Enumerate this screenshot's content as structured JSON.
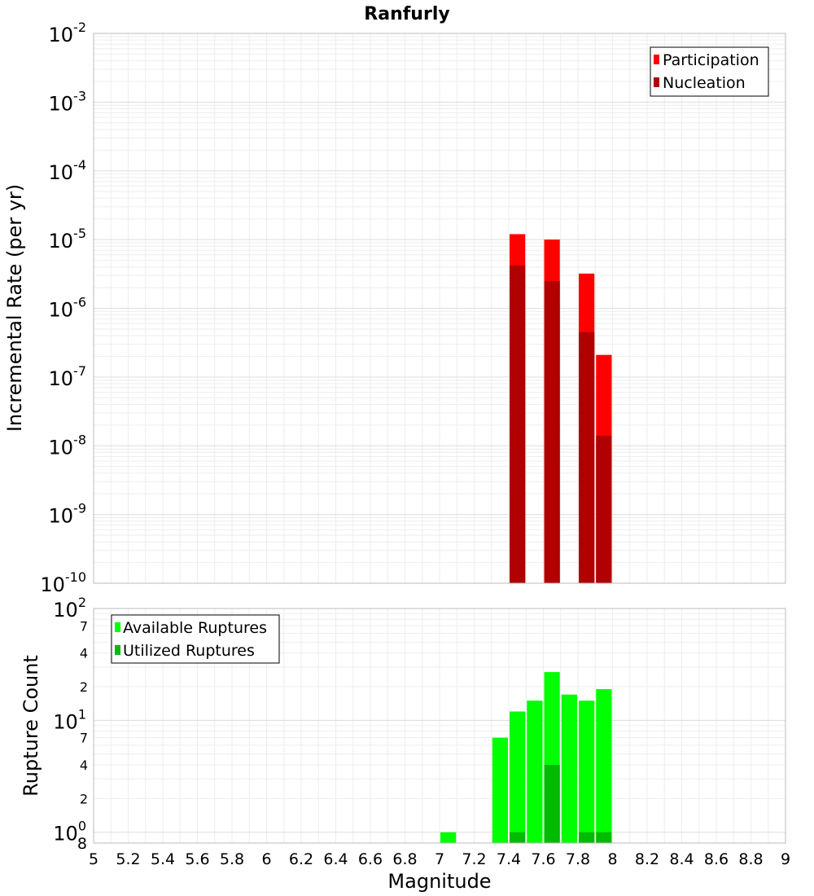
{
  "chart_data": [
    {
      "type": "bar",
      "title": "Ranfurly",
      "xlabel": "Magnitude",
      "ylabel": "Incremental Rate (per yr)",
      "yscale": "log",
      "xlim": [
        5,
        9
      ],
      "ylim": [
        1e-10,
        0.01
      ],
      "bin_width": 0.1,
      "legend_position": "top-right",
      "y_ticks": [
        {
          "base": "10",
          "exp": "-10"
        },
        {
          "base": "10",
          "exp": "-9"
        },
        {
          "base": "10",
          "exp": "-8"
        },
        {
          "base": "10",
          "exp": "-7"
        },
        {
          "base": "10",
          "exp": "-6"
        },
        {
          "base": "10",
          "exp": "-5"
        },
        {
          "base": "10",
          "exp": "-4"
        },
        {
          "base": "10",
          "exp": "-3"
        },
        {
          "base": "10",
          "exp": "-2"
        }
      ],
      "series": [
        {
          "name": "Participation",
          "color": "#ff0000",
          "points": [
            {
              "x": 7.45,
              "y": 1.2e-05
            },
            {
              "x": 7.65,
              "y": 1e-05
            },
            {
              "x": 7.85,
              "y": 3.2e-06
            },
            {
              "x": 7.95,
              "y": 2.1e-07
            }
          ]
        },
        {
          "name": "Nucleation",
          "color": "#b00000",
          "points": [
            {
              "x": 7.45,
              "y": 4.2e-06
            },
            {
              "x": 7.65,
              "y": 2.5e-06
            },
            {
              "x": 7.85,
              "y": 4.5e-07
            },
            {
              "x": 7.95,
              "y": 1.4e-08
            }
          ]
        }
      ]
    },
    {
      "type": "bar",
      "xlabel": "Magnitude",
      "ylabel": "Rupture Count",
      "yscale": "log",
      "xlim": [
        5,
        9
      ],
      "ylim": [
        0.8,
        100
      ],
      "bin_width": 0.1,
      "legend_position": "top-left",
      "x_ticks": [
        "5",
        "5.2",
        "5.4",
        "5.6",
        "5.8",
        "6",
        "6.2",
        "6.4",
        "6.6",
        "6.8",
        "7",
        "7.2",
        "7.4",
        "7.6",
        "7.8",
        "8",
        "8.2",
        "8.4",
        "8.6",
        "8.8",
        "9"
      ],
      "y_major_ticks": [
        {
          "base": "10",
          "exp": "0"
        },
        {
          "base": "10",
          "exp": "1"
        },
        {
          "base": "10",
          "exp": "2"
        }
      ],
      "y_minor_ticks": [
        "8",
        "2",
        "4",
        "7",
        "2",
        "4",
        "7"
      ],
      "series": [
        {
          "name": "Available Ruptures",
          "color": "#00ff00",
          "points": [
            {
              "x": 7.05,
              "y": 1
            },
            {
              "x": 7.35,
              "y": 7
            },
            {
              "x": 7.45,
              "y": 12
            },
            {
              "x": 7.55,
              "y": 15
            },
            {
              "x": 7.65,
              "y": 27
            },
            {
              "x": 7.75,
              "y": 17
            },
            {
              "x": 7.85,
              "y": 15
            },
            {
              "x": 7.95,
              "y": 19
            }
          ]
        },
        {
          "name": "Utilized Ruptures",
          "color": "#00bb00",
          "points": [
            {
              "x": 7.45,
              "y": 1
            },
            {
              "x": 7.65,
              "y": 4
            },
            {
              "x": 7.85,
              "y": 1
            },
            {
              "x": 7.95,
              "y": 1
            }
          ]
        }
      ]
    }
  ]
}
